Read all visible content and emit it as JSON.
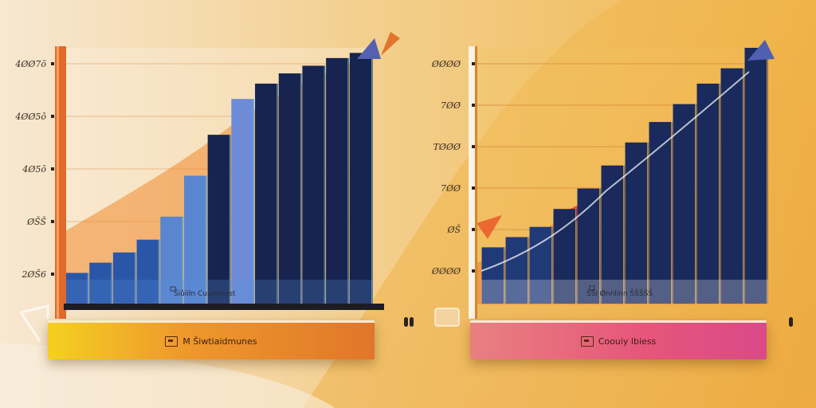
{
  "colors": {
    "bg_light": "#f6e3c8",
    "bg_orange": "#f2b34a",
    "bar_navy": "#17244f",
    "bar_blue": "#4d75c4",
    "axis_orange": "#d96a2a",
    "banner_left": "#ec8a2a",
    "banner_right": "#e6557a"
  },
  "chart_data": [
    {
      "type": "bar",
      "y_tick_labels": [
        "4ØØ7ō",
        "4ØØ5ō",
        "4Ø5ō",
        "ØŠŠ",
        "2ØŠ6"
      ],
      "inner_label": "Šiůiiłn Cuuimesst",
      "banner_label": "M Šiwtiaidmunes",
      "values": [
        12,
        16,
        20,
        25,
        34,
        50,
        66,
        80,
        86,
        90,
        93,
        96,
        98
      ],
      "ylim": [
        0,
        100
      ]
    },
    {
      "type": "bar",
      "y_tick_labels": [
        "ØØØØ",
        "7ØØ",
        "TØØØ",
        "7ØØ",
        "ØŠ",
        "ØØØØ"
      ],
      "inner_label": "ŠŠi Ønnlinn ŠŠŠŠŠ",
      "banner_label": "Coouiy lbiess",
      "values": [
        22,
        26,
        30,
        37,
        45,
        54,
        63,
        71,
        78,
        86,
        92,
        100
      ],
      "ylim": [
        0,
        100
      ]
    }
  ]
}
